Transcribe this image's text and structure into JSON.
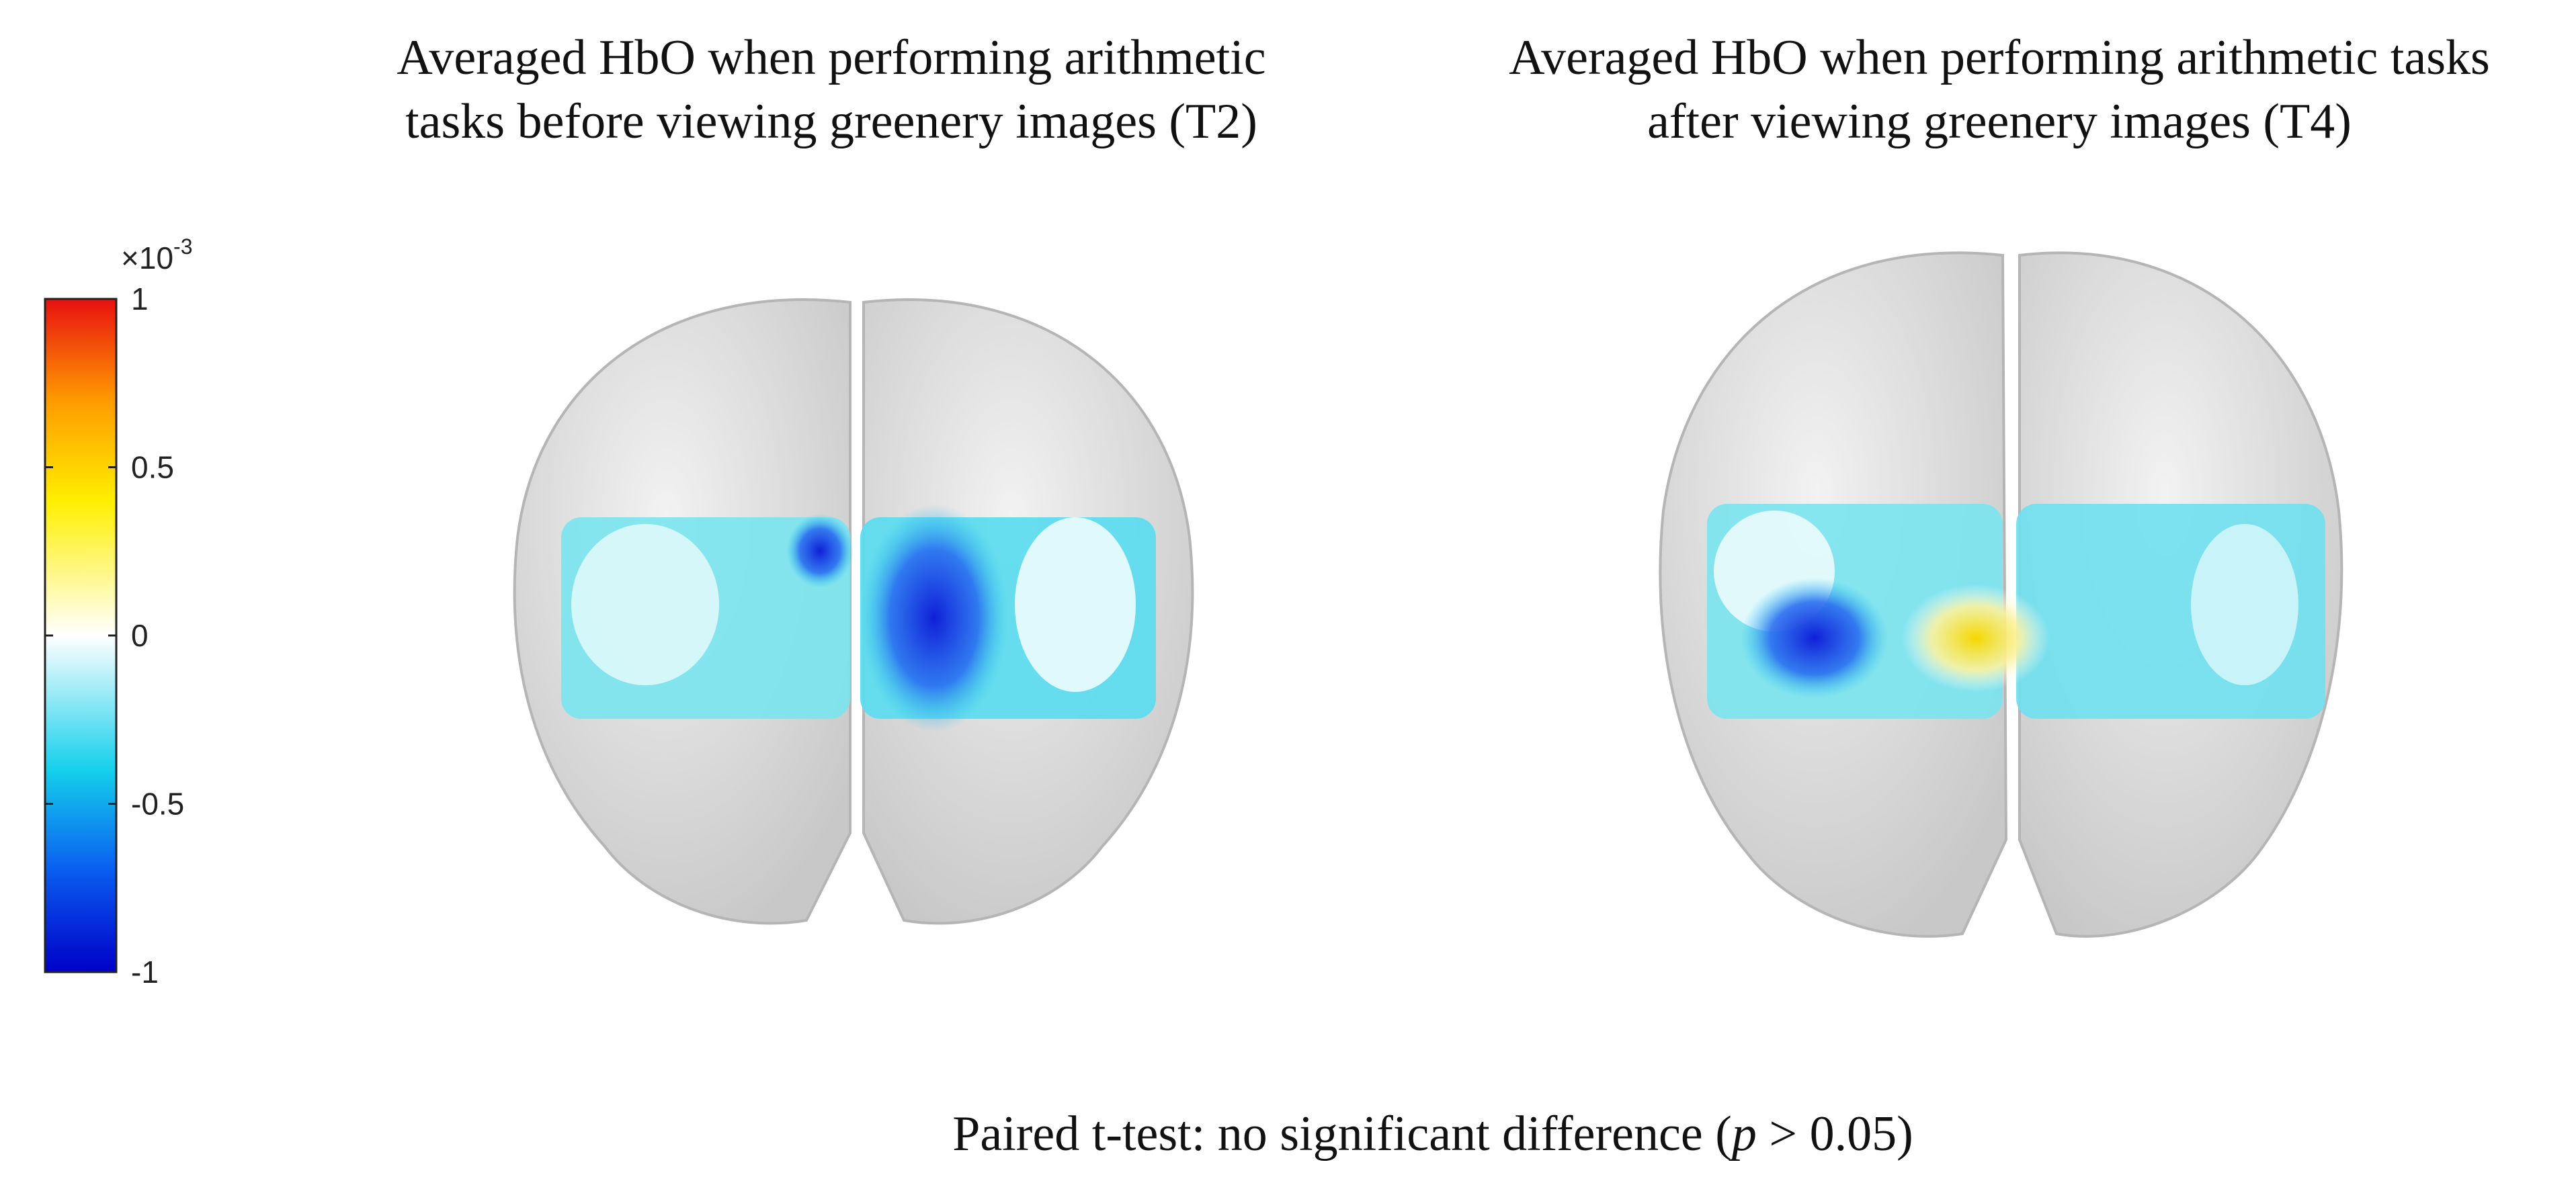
{
  "figure": {
    "panels": [
      {
        "title_lines": [
          "Averaged HbO when performing arithmetic",
          "tasks before viewing greenery images (T2)"
        ]
      },
      {
        "title_lines": [
          "Averaged HbO when performing arithmetic tasks",
          "after viewing greenery images (T4)"
        ]
      }
    ],
    "colorbar": {
      "lim": [
        -1,
        1
      ],
      "ticks": [
        -1,
        -0.5,
        0,
        0.5,
        1
      ],
      "multiplier": "×10",
      "exponent": "-3"
    },
    "caption": {
      "before": "Paired t-test: no significant difference (",
      "italic": "p",
      "after": " > 0.05)"
    }
  }
}
